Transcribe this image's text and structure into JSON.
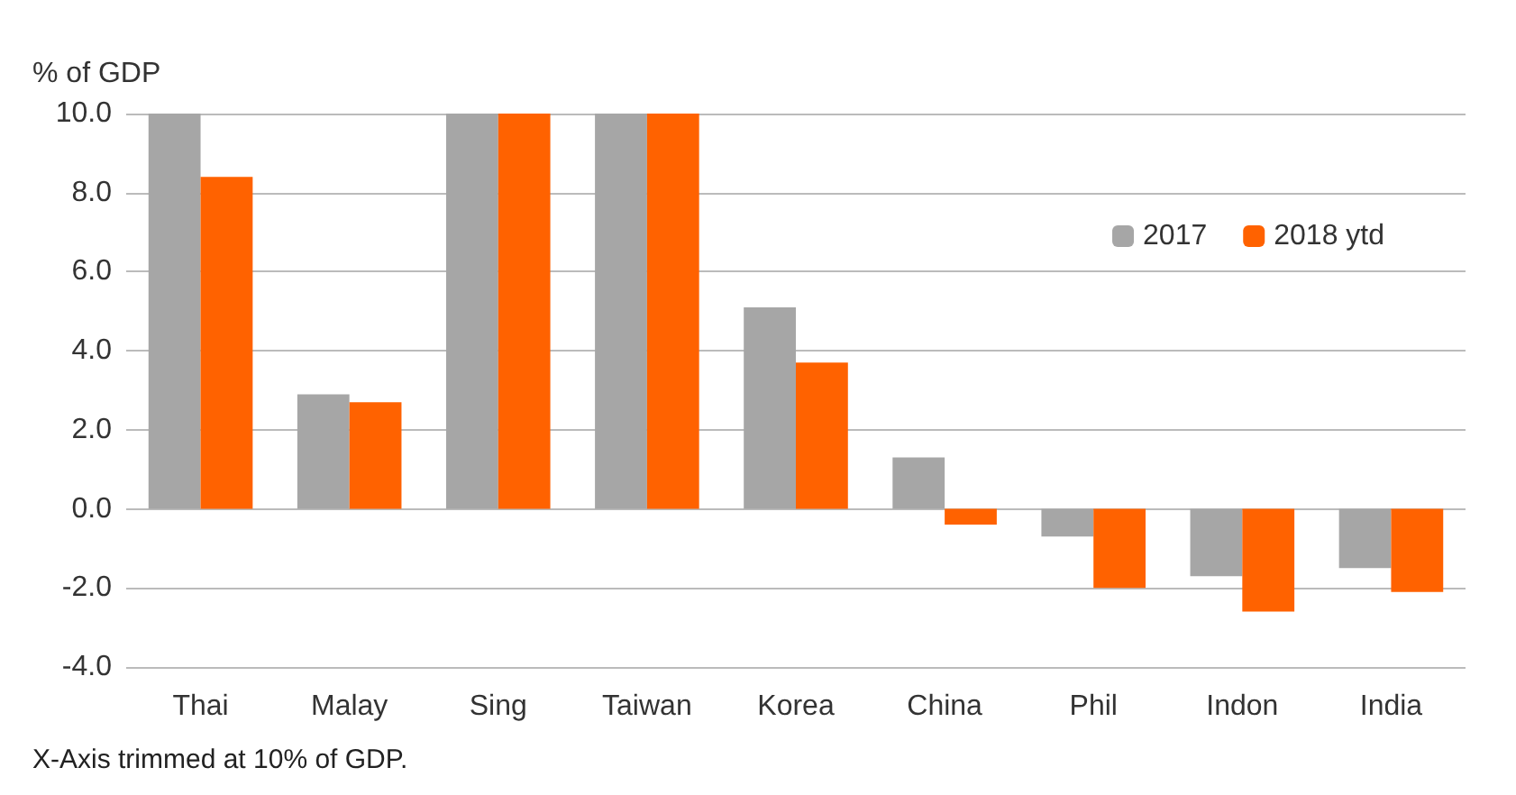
{
  "chart_data": {
    "type": "bar",
    "ylabel": "% of GDP",
    "categories": [
      "Thai",
      "Malay",
      "Sing",
      "Taiwan",
      "Korea",
      "China",
      "Phil",
      "Indon",
      "India"
    ],
    "series": [
      {
        "name": "2017",
        "color": "#a6a6a6",
        "values": [
          10,
          2.9,
          10,
          10,
          5.1,
          1.3,
          -0.7,
          -1.7,
          -1.5
        ]
      },
      {
        "name": "2018 ytd",
        "color": "#ff6200",
        "values": [
          8.4,
          2.7,
          10,
          10,
          3.7,
          -0.4,
          -2.0,
          -2.6,
          -2.1
        ]
      }
    ],
    "ylim": [
      -4,
      10
    ],
    "yticks": [
      {
        "value": -4,
        "label": "-4.0"
      },
      {
        "value": -2,
        "label": "-2.0"
      },
      {
        "value": 0,
        "label": "0.0"
      },
      {
        "value": 2,
        "label": "2.0"
      },
      {
        "value": 4,
        "label": "4.0"
      },
      {
        "value": 6,
        "label": "6.0"
      },
      {
        "value": 8,
        "label": "8.0"
      },
      {
        "value": 10,
        "label": "10.0"
      }
    ],
    "grid": "y",
    "legend": "top right",
    "annotations": [
      "X-Axis trimmed at 10% of GDP."
    ]
  }
}
